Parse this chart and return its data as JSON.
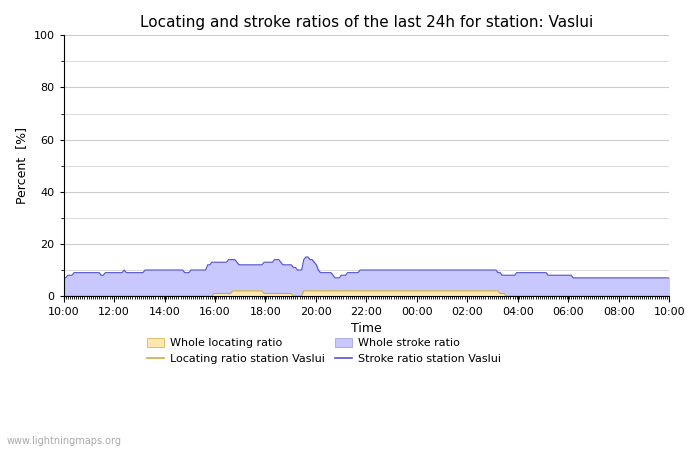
{
  "title": "Locating and stroke ratios of the last 24h for station: Vaslui",
  "ylabel": "Percent  [%]",
  "xlabel": "Time",
  "watermark": "www.lightningmaps.org",
  "ylim": [
    0,
    100
  ],
  "yticks": [
    0,
    20,
    40,
    60,
    80,
    100
  ],
  "yticks_minor": [
    10,
    30,
    50,
    70,
    90
  ],
  "x_labels": [
    "10:00",
    "12:00",
    "14:00",
    "16:00",
    "18:00",
    "20:00",
    "22:00",
    "00:00",
    "02:00",
    "04:00",
    "06:00",
    "08:00",
    "10:00"
  ],
  "background_color": "#ffffff",
  "plot_bg_color": "#ffffff",
  "grid_color": "#cccccc",
  "stroke_fill_color": "#c8c8ff",
  "stroke_line_color": "#5555cc",
  "locating_fill_color": "#ffe8b0",
  "locating_line_color": "#ccaa44",
  "title_fontsize": 11,
  "axis_fontsize": 9,
  "tick_fontsize": 8,
  "stroke_ratio": [
    7,
    7,
    8,
    8,
    8,
    9,
    9,
    9,
    9,
    9,
    9,
    9,
    9,
    9,
    9,
    9,
    9,
    9,
    8,
    8,
    9,
    9,
    9,
    9,
    9,
    9,
    9,
    9,
    9,
    10,
    9,
    9,
    9,
    9,
    9,
    9,
    9,
    9,
    9,
    10,
    10,
    10,
    10,
    10,
    10,
    10,
    10,
    10,
    10,
    10,
    10,
    10,
    10,
    10,
    10,
    10,
    10,
    10,
    9,
    9,
    9,
    10,
    10,
    10,
    10,
    10,
    10,
    10,
    10,
    12,
    12,
    13,
    13,
    13,
    13,
    13,
    13,
    13,
    13,
    14,
    14,
    14,
    14,
    13,
    12,
    12,
    12,
    12,
    12,
    12,
    12,
    12,
    12,
    12,
    12,
    12,
    13,
    13,
    13,
    13,
    13,
    14,
    14,
    14,
    13,
    12,
    12,
    12,
    12,
    12,
    11,
    11,
    10,
    10,
    10,
    14,
    15,
    15,
    14,
    14,
    13,
    12,
    10,
    9,
    9,
    9,
    9,
    9,
    9,
    8,
    7,
    7,
    7,
    8,
    8,
    8,
    9,
    9,
    9,
    9,
    9,
    9,
    10,
    10,
    10,
    10,
    10,
    10,
    10,
    10,
    10,
    10,
    10,
    10,
    10,
    10,
    10,
    10,
    10,
    10,
    10,
    10,
    10,
    10,
    10,
    10,
    10,
    10,
    10,
    10,
    10,
    10,
    10,
    10,
    10,
    10,
    10,
    10,
    10,
    10,
    10,
    10,
    10,
    10,
    10,
    10,
    10,
    10,
    10,
    10,
    10,
    10,
    10,
    10,
    10,
    10,
    10,
    10,
    10,
    10,
    10,
    10,
    10,
    10,
    10,
    10,
    10,
    10,
    9,
    9,
    8,
    8,
    8,
    8,
    8,
    8,
    8,
    9,
    9,
    9,
    9,
    9,
    9,
    9,
    9,
    9,
    9,
    9,
    9,
    9,
    9,
    9,
    8,
    8,
    8,
    8,
    8,
    8,
    8,
    8,
    8,
    8,
    8,
    8,
    7,
    7,
    7,
    7,
    7,
    7,
    7,
    7,
    7,
    7,
    7,
    7,
    7,
    7,
    7,
    7,
    7,
    7,
    7,
    7,
    7,
    7,
    7,
    7,
    7,
    7,
    7,
    7,
    7,
    7,
    7,
    7,
    7,
    7,
    7,
    7,
    7,
    7,
    7,
    7,
    7,
    7,
    7,
    7,
    7,
    7,
    7
  ],
  "locating_ratio": [
    0,
    0,
    0,
    0,
    0,
    0,
    0,
    0,
    0,
    0,
    0,
    0,
    0,
    0,
    0,
    0,
    0,
    0,
    0,
    0,
    0,
    0,
    0,
    0,
    0,
    0,
    0,
    0,
    0,
    0,
    0,
    0,
    0,
    0,
    0,
    0,
    0,
    0,
    0,
    0,
    0,
    0,
    0,
    0,
    0,
    0,
    0,
    0,
    0,
    0,
    0,
    0,
    0,
    0,
    0,
    0,
    0,
    0,
    0,
    0,
    0,
    0,
    0,
    0,
    0,
    0,
    0,
    0,
    0,
    0,
    0,
    0,
    1,
    1,
    1,
    1,
    1,
    1,
    1,
    1,
    1,
    2,
    2,
    2,
    2,
    2,
    2,
    2,
    2,
    2,
    2,
    2,
    2,
    2,
    2,
    2,
    1,
    1,
    1,
    1,
    1,
    1,
    1,
    1,
    1,
    1,
    1,
    1,
    1,
    1,
    0,
    0,
    0,
    0,
    0,
    2,
    2,
    2,
    2,
    2,
    2,
    2,
    2,
    2,
    2,
    2,
    2,
    2,
    2,
    2,
    2,
    2,
    2,
    2,
    2,
    2,
    2,
    2,
    2,
    2,
    2,
    2,
    2,
    2,
    2,
    2,
    2,
    2,
    2,
    2,
    2,
    2,
    2,
    2,
    2,
    2,
    2,
    2,
    2,
    2,
    2,
    2,
    2,
    2,
    2,
    2,
    2,
    2,
    2,
    2,
    2,
    2,
    2,
    2,
    2,
    2,
    2,
    2,
    2,
    2,
    2,
    2,
    2,
    2,
    2,
    2,
    2,
    2,
    2,
    2,
    2,
    2,
    2,
    2,
    2,
    2,
    2,
    2,
    2,
    2,
    2,
    2,
    2,
    2,
    2,
    2,
    2,
    2,
    2,
    1,
    1,
    1,
    0,
    0,
    0,
    0,
    0,
    0,
    0,
    0,
    0,
    0,
    0,
    0,
    0,
    0,
    0,
    0,
    0,
    0,
    0,
    0,
    0,
    0,
    0,
    0,
    0,
    0,
    0,
    0,
    0,
    0,
    0,
    0,
    0,
    0,
    0,
    0,
    0,
    0,
    0,
    0,
    0,
    0,
    0,
    0,
    0,
    0,
    0,
    0,
    0,
    0,
    0,
    0,
    0,
    0,
    0,
    0,
    0,
    0,
    0,
    0,
    0,
    0,
    0,
    0,
    0,
    0,
    0,
    0,
    0,
    0,
    0,
    0,
    0,
    0,
    0,
    0,
    0,
    0,
    0
  ]
}
